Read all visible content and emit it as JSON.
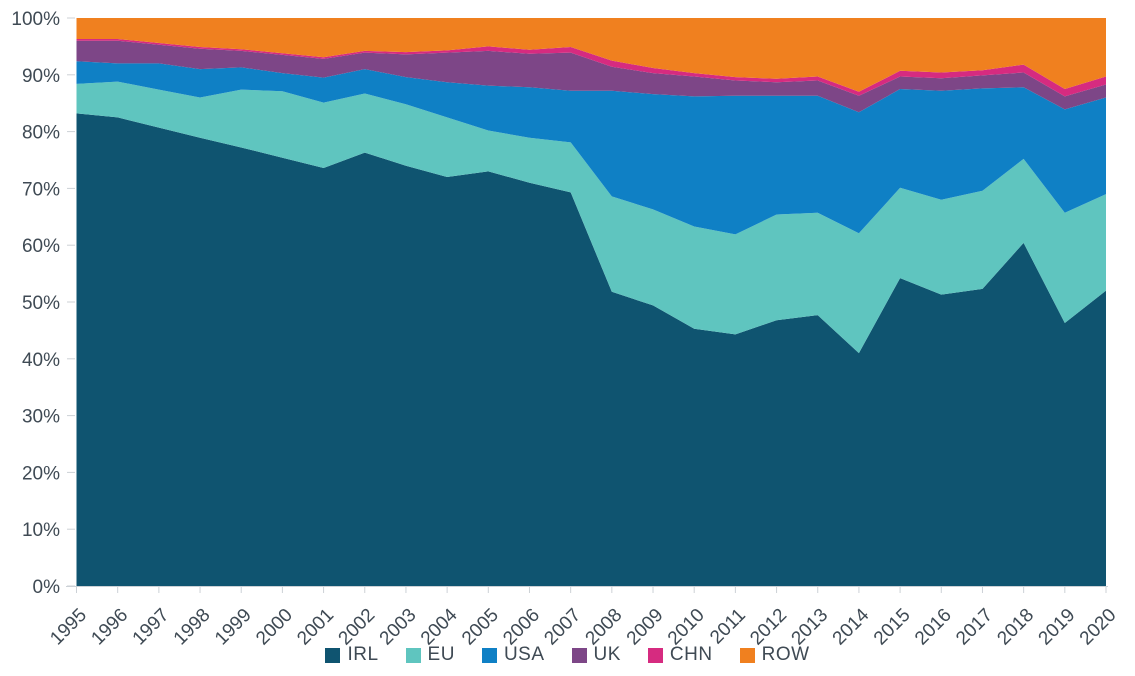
{
  "chart_data": {
    "type": "area",
    "stacked": true,
    "unit": "%",
    "title": "",
    "xlabel": "",
    "ylabel": "",
    "ylim": [
      0,
      100
    ],
    "grid": false,
    "legend_position": "bottom",
    "x": [
      1995,
      1996,
      1997,
      1998,
      1999,
      2000,
      2001,
      2002,
      2003,
      2004,
      2005,
      2006,
      2007,
      2008,
      2009,
      2010,
      2011,
      2012,
      2013,
      2014,
      2015,
      2016,
      2017,
      2018,
      2019,
      2020
    ],
    "y_ticks": [
      "0%",
      "10%",
      "20%",
      "30%",
      "40%",
      "50%",
      "60%",
      "70%",
      "80%",
      "90%",
      "100%"
    ],
    "series": [
      {
        "name": "IRL",
        "color": "#0F5470",
        "values": [
          83.2,
          82.5,
          80.7,
          78.9,
          77.2,
          75.4,
          73.6,
          76.3,
          74.0,
          72.0,
          73.0,
          71.0,
          69.3,
          51.8,
          49.4,
          45.3,
          44.3,
          46.8,
          47.7,
          41.0,
          54.2,
          51.3,
          52.3,
          60.4,
          46.3,
          52.0
        ]
      },
      {
        "name": "EU",
        "color": "#5FC5BF",
        "values": [
          5.2,
          6.3,
          6.7,
          7.1,
          10.2,
          11.7,
          11.5,
          10.4,
          10.8,
          10.5,
          7.2,
          7.9,
          8.8,
          16.8,
          16.9,
          18.0,
          17.6,
          18.6,
          18.0,
          21.1,
          15.9,
          16.7,
          17.3,
          14.8,
          19.4,
          17.0
        ]
      },
      {
        "name": "USA",
        "color": "#0F80C5",
        "values": [
          4.0,
          3.2,
          4.6,
          5.0,
          3.9,
          3.2,
          4.4,
          4.3,
          4.8,
          6.2,
          7.9,
          8.9,
          9.1,
          18.6,
          20.3,
          22.9,
          24.4,
          20.9,
          20.6,
          21.3,
          17.4,
          19.2,
          18.0,
          12.6,
          18.2,
          17.0
        ]
      },
      {
        "name": "UK",
        "color": "#7D4687",
        "values": [
          3.6,
          4.0,
          3.3,
          3.6,
          2.9,
          3.2,
          3.3,
          2.9,
          4.0,
          5.2,
          6.1,
          5.9,
          6.7,
          4.2,
          3.7,
          3.5,
          2.7,
          2.4,
          2.7,
          2.9,
          2.2,
          2.2,
          2.3,
          2.6,
          2.3,
          2.3
        ]
      },
      {
        "name": "CHN",
        "color": "#D62B80",
        "values": [
          0.3,
          0.3,
          0.3,
          0.3,
          0.3,
          0.3,
          0.3,
          0.3,
          0.4,
          0.4,
          0.8,
          0.7,
          1.0,
          1.1,
          0.9,
          0.6,
          0.6,
          0.6,
          0.7,
          0.7,
          1.0,
          1.0,
          0.9,
          1.4,
          1.3,
          1.4
        ]
      },
      {
        "name": "ROW",
        "color": "#F0801F",
        "values": [
          3.7,
          3.7,
          4.4,
          5.1,
          5.5,
          6.2,
          6.9,
          5.8,
          6.0,
          5.7,
          5.0,
          5.6,
          5.1,
          7.5,
          8.8,
          9.7,
          10.4,
          10.7,
          10.3,
          13.0,
          9.3,
          9.6,
          9.2,
          8.2,
          12.5,
          10.3
        ]
      }
    ]
  },
  "axes": {
    "text_color": "#3F4A54",
    "tick_color": "#CCD1D6"
  }
}
